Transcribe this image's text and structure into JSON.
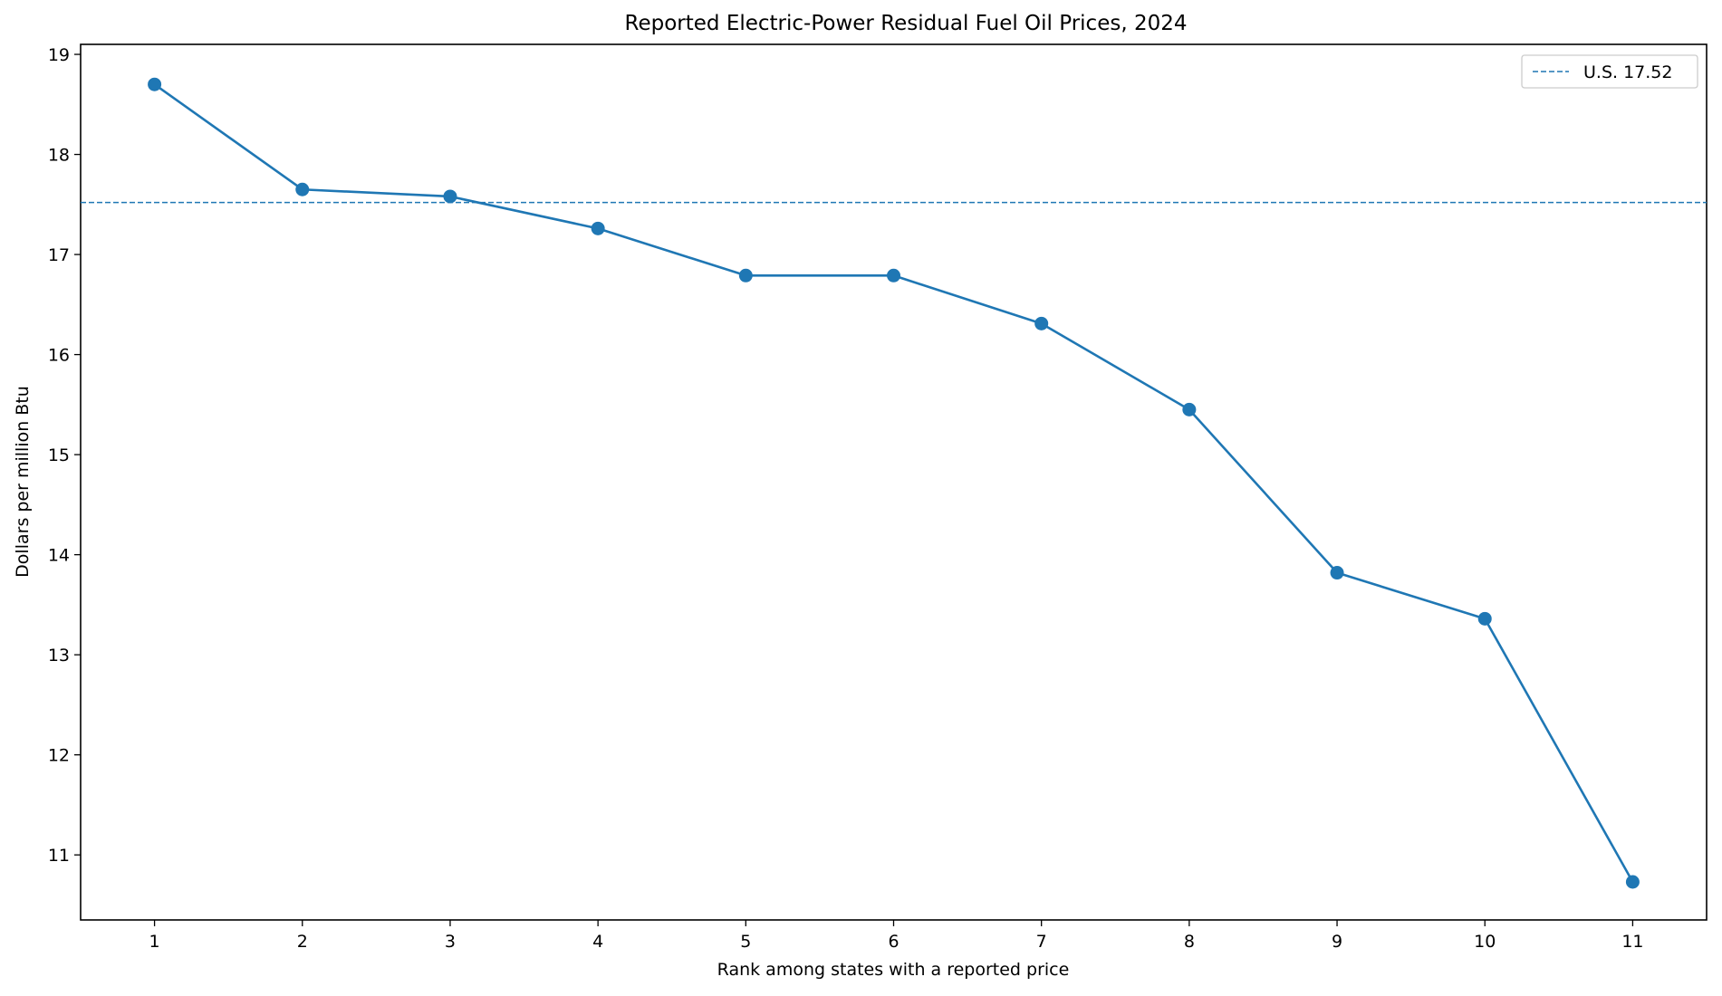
{
  "chart_data": {
    "type": "line",
    "title": "Reported Electric-Power Residual Fuel Oil Prices, 2024",
    "xlabel": "Rank among states with a reported price",
    "ylabel": "Dollars per million Btu",
    "x": [
      1,
      2,
      3,
      4,
      5,
      6,
      7,
      8,
      9,
      10,
      11
    ],
    "series": [
      {
        "values": [
          18.7,
          17.65,
          17.58,
          17.26,
          16.79,
          16.79,
          16.31,
          15.45,
          13.82,
          13.36,
          10.73
        ],
        "color": "#1f77b4",
        "marker": "circle"
      }
    ],
    "reference_line": {
      "label": "U.S. 17.52",
      "value": 17.52,
      "color": "#1f77b4",
      "style": "dashed"
    },
    "xlim": [
      0.5,
      11.5
    ],
    "ylim": [
      10.35,
      19.1
    ],
    "xticks": [
      "1",
      "2",
      "3",
      "4",
      "5",
      "6",
      "7",
      "8",
      "9",
      "10",
      "11"
    ],
    "yticks": [
      "11",
      "12",
      "13",
      "14",
      "15",
      "16",
      "17",
      "18",
      "19"
    ],
    "grid": false,
    "legend_position": "top-right"
  }
}
